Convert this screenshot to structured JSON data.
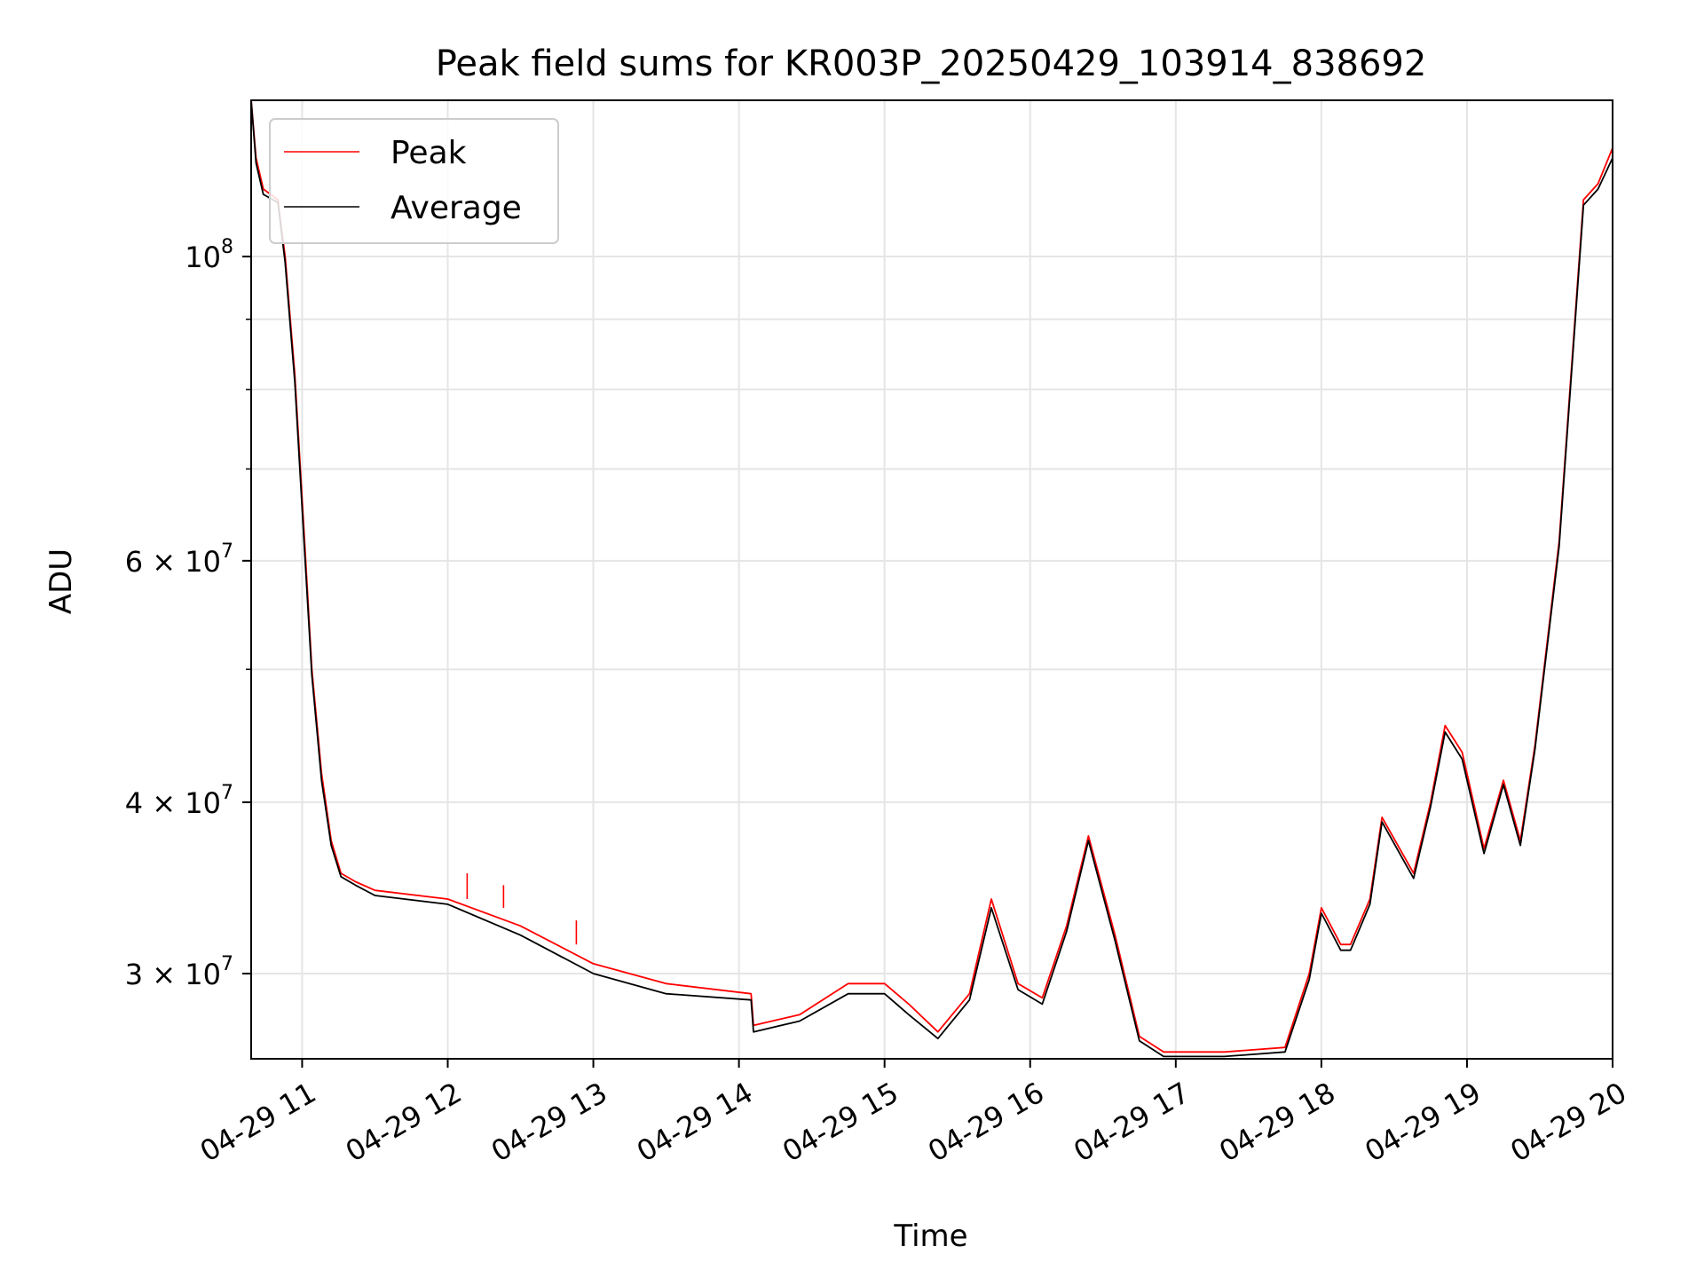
{
  "chart_data": {
    "type": "line",
    "title": "Peak field sums for KR003P_20250429_103914_838692",
    "xlabel": "Time",
    "ylabel": "ADU",
    "x_unit": "date-hour",
    "xlim": [
      "04-29 10:39",
      "04-29 20:00"
    ],
    "ylim": [
      26000000,
      130000000
    ],
    "yscale": "log",
    "grid": true,
    "legend_loc": "upper left",
    "x_ticks": [
      "04-29 11",
      "04-29 12",
      "04-29 13",
      "04-29 14",
      "04-29 15",
      "04-29 16",
      "04-29 17",
      "04-29 18",
      "04-29 19",
      "04-29 20"
    ],
    "y_ticks": [
      {
        "value": 30000000,
        "label": "3 × 10",
        "exp": "7"
      },
      {
        "value": 40000000,
        "label": "4 × 10",
        "exp": "7"
      },
      {
        "value": 60000000,
        "label": "6 × 10",
        "exp": "7"
      },
      {
        "value": 100000000,
        "label": "10",
        "exp": "8"
      }
    ],
    "y_minor_ticks": [
      50000000,
      70000000,
      80000000,
      90000000
    ],
    "x": [
      "04-29 10:39",
      "04-29 10:41",
      "04-29 10:44",
      "04-29 10:50",
      "04-29 10:53",
      "04-29 10:57",
      "04-29 11:01",
      "04-29 11:04",
      "04-29 11:08",
      "04-29 11:12",
      "04-29 11:16",
      "04-29 11:22",
      "04-29 11:30",
      "04-29 12:00",
      "04-29 12:30",
      "04-29 13:00",
      "04-29 13:30",
      "04-29 14:05",
      "04-29 14:06",
      "04-29 14:25",
      "04-29 14:45",
      "04-29 15:00",
      "04-29 15:10",
      "04-29 15:22",
      "04-29 15:35",
      "04-29 15:44",
      "04-29 15:55",
      "04-29 16:05",
      "04-29 16:15",
      "04-29 16:24",
      "04-29 16:35",
      "04-29 16:45",
      "04-29 16:55",
      "04-29 17:20",
      "04-29 17:45",
      "04-29 17:55",
      "04-29 18:00",
      "04-29 18:08",
      "04-29 18:12",
      "04-29 18:20",
      "04-29 18:25",
      "04-29 18:38",
      "04-29 18:45",
      "04-29 18:51",
      "04-29 18:58",
      "04-29 19:07",
      "04-29 19:15",
      "04-29 19:22",
      "04-29 19:28",
      "04-29 19:38",
      "04-29 19:48",
      "04-29 19:54",
      "04-29 20:00"
    ],
    "series": [
      {
        "name": "Peak",
        "color": "#ff0000",
        "values": [
          130000000,
          118000000,
          112000000,
          110000000,
          100000000,
          82000000,
          62000000,
          50000000,
          42000000,
          37500000,
          35500000,
          35000000,
          34500000,
          34000000,
          32500000,
          30500000,
          29500000,
          29000000,
          27500000,
          28000000,
          29500000,
          29500000,
          28500000,
          27200000,
          29000000,
          34000000,
          29500000,
          28800000,
          32500000,
          37800000,
          32000000,
          27000000,
          26300000,
          26300000,
          26500000,
          30000000,
          33500000,
          31500000,
          31500000,
          34000000,
          39000000,
          35500000,
          40000000,
          45500000,
          43500000,
          37000000,
          41500000,
          37500000,
          44000000,
          62000000,
          110000000,
          113000000,
          120000000
        ]
      },
      {
        "name": "Average",
        "color": "#000000",
        "values": [
          130000000,
          117000000,
          111000000,
          109500000,
          99000000,
          81000000,
          61000000,
          49500000,
          41500000,
          37200000,
          35300000,
          34800000,
          34200000,
          33700000,
          32000000,
          30000000,
          29000000,
          28700000,
          27200000,
          27700000,
          29000000,
          29000000,
          28000000,
          26900000,
          28700000,
          33500000,
          29200000,
          28500000,
          32200000,
          37500000,
          31700000,
          26800000,
          26100000,
          26100000,
          26300000,
          29700000,
          33200000,
          31200000,
          31200000,
          33700000,
          38700000,
          35200000,
          39700000,
          45000000,
          43000000,
          36700000,
          41200000,
          37200000,
          43700000,
          61500000,
          109000000,
          112000000,
          118000000
        ]
      }
    ],
    "spikes": [
      {
        "series": "Peak",
        "x": "04-29 12:08",
        "base": 34000000,
        "top": 35500000
      },
      {
        "series": "Peak",
        "x": "04-29 12:23",
        "base": 33500000,
        "top": 34800000
      },
      {
        "series": "Peak",
        "x": "04-29 12:53",
        "base": 31500000,
        "top": 32800000
      }
    ]
  }
}
